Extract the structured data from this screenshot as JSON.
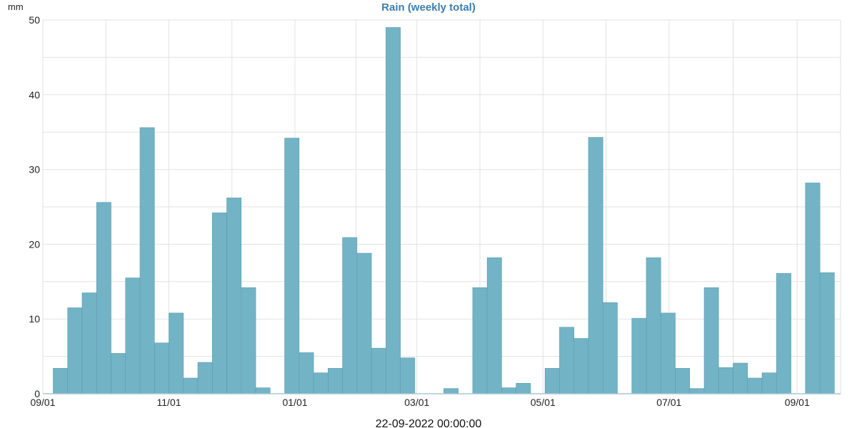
{
  "chart_data": {
    "type": "bar",
    "title": "Rain (weekly total)",
    "ylabel": "mm",
    "footer": "22-09-2022 00:00:00",
    "ylim": [
      0,
      50
    ],
    "y_ticks": [
      0,
      10,
      20,
      30,
      40,
      50
    ],
    "x_start": "2021-09-01",
    "x_end": "2022-09-22",
    "x_ticks": [
      {
        "date": "2021-09-01",
        "label": "09/01"
      },
      {
        "date": "2021-11-01",
        "label": "11/01"
      },
      {
        "date": "2022-01-01",
        "label": "01/01"
      },
      {
        "date": "2022-03-01",
        "label": "03/01"
      },
      {
        "date": "2022-05-01",
        "label": "05/01"
      },
      {
        "date": "2022-07-01",
        "label": "07/01"
      },
      {
        "date": "2022-09-01",
        "label": "09/01"
      }
    ],
    "week_starts": [
      "2021-09-06",
      "2021-09-13",
      "2021-09-20",
      "2021-09-27",
      "2021-10-04",
      "2021-10-11",
      "2021-10-18",
      "2021-10-25",
      "2021-11-01",
      "2021-11-08",
      "2021-11-15",
      "2021-11-22",
      "2021-11-29",
      "2021-12-06",
      "2021-12-13",
      "2021-12-20",
      "2021-12-27",
      "2022-01-03",
      "2022-01-10",
      "2022-01-17",
      "2022-01-24",
      "2022-01-31",
      "2022-02-07",
      "2022-02-14",
      "2022-02-21",
      "2022-02-28",
      "2022-03-07",
      "2022-03-14",
      "2022-03-21",
      "2022-03-28",
      "2022-04-04",
      "2022-04-11",
      "2022-04-18",
      "2022-04-25",
      "2022-05-02",
      "2022-05-09",
      "2022-05-16",
      "2022-05-23",
      "2022-05-30",
      "2022-06-06",
      "2022-06-13",
      "2022-06-20",
      "2022-06-27",
      "2022-07-04",
      "2022-07-11",
      "2022-07-18",
      "2022-07-25",
      "2022-08-01",
      "2022-08-08",
      "2022-08-15",
      "2022-08-22",
      "2022-08-29",
      "2022-09-05",
      "2022-09-12"
    ],
    "values": [
      3.4,
      11.5,
      13.5,
      25.6,
      5.4,
      15.5,
      35.6,
      6.8,
      10.8,
      2.1,
      4.2,
      24.2,
      26.2,
      14.2,
      0.8,
      0,
      34.2,
      5.5,
      2.8,
      3.4,
      20.9,
      18.8,
      6.1,
      49.0,
      4.8,
      0,
      0,
      0.7,
      0,
      14.2,
      18.2,
      0.8,
      1.4,
      0,
      3.4,
      8.9,
      7.4,
      34.3,
      12.2,
      0,
      10.1,
      18.2,
      10.8,
      3.4,
      0.7,
      14.2,
      3.5,
      4.1,
      2.1,
      2.8,
      16.1,
      0,
      28.2,
      16.2
    ],
    "grid": true,
    "colors": {
      "bar_fill": "#73b3c6",
      "bar_stroke": "#5a9cb0",
      "title": "#3a7fb0",
      "axis": "#a7c6d8"
    }
  }
}
